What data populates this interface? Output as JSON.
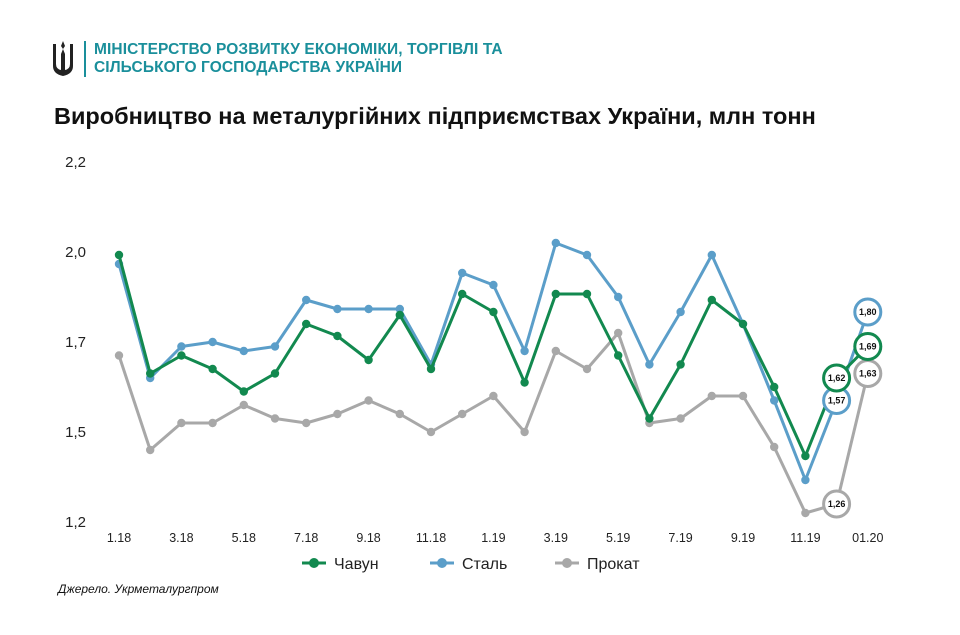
{
  "header": {
    "ministry_line1": "МІНІСТЕРСТВО РОЗВИТКУ ЕКОНОМІКИ, ТОРГІВЛІ ТА",
    "ministry_line2": "СІЛЬСЬКОГО ГОСПОДАРСТВА УКРАЇНИ"
  },
  "source": "Джерело. Укрметалургпром",
  "colors": {
    "accent": "#1a8f9b",
    "chavun": "#12894f",
    "stal": "#5b9ec9",
    "prokat": "#a8a8a8"
  },
  "chart_data": {
    "type": "line",
    "title": "Виробництво на металургійних підприємствах України, млн тонн",
    "xlabel": "",
    "ylabel": "",
    "ylim": [
      1.2,
      2.2
    ],
    "y_ticks": [
      "2,2",
      "2,0",
      "1,7",
      "1,5",
      "1,2"
    ],
    "y_tick_values": [
      2.2,
      2.0,
      1.7,
      1.5,
      1.2
    ],
    "x": [
      "1.18",
      "2.18",
      "3.18",
      "4.18",
      "5.18",
      "6.18",
      "7.18",
      "8.18",
      "9.18",
      "10.18",
      "11.18",
      "12.18",
      "1.19",
      "2.19",
      "3.19",
      "4.19",
      "5.19",
      "6.19",
      "7.19",
      "8.19",
      "9.19",
      "10.19",
      "11.19",
      "12.19",
      "01.20"
    ],
    "x_tick_labels": [
      "1.18",
      "",
      "3.18",
      "",
      "5.18",
      "",
      "7.18",
      "",
      "9.18",
      "",
      "11.18",
      "",
      "1.19",
      "",
      "3.19",
      "",
      "5.19",
      "",
      "7.19",
      "",
      "9.19",
      "",
      "11.19",
      "",
      "01.20"
    ],
    "legend_position": "bottom",
    "grid": false,
    "series": [
      {
        "name": "Чавун",
        "color": "#12894f",
        "values": [
          1.99,
          1.63,
          1.67,
          1.64,
          1.59,
          1.63,
          1.76,
          1.72,
          1.66,
          1.79,
          1.64,
          1.86,
          1.8,
          1.61,
          1.86,
          1.86,
          1.67,
          1.53,
          1.65,
          1.84,
          1.76,
          1.6,
          1.42,
          1.62,
          1.69
        ],
        "labels": {
          "23": "1,62",
          "24": "1,69"
        }
      },
      {
        "name": "Сталь",
        "color": "#5b9ec9",
        "values": [
          1.96,
          1.62,
          1.69,
          1.7,
          1.68,
          1.69,
          1.84,
          1.81,
          1.81,
          1.81,
          1.65,
          1.93,
          1.89,
          1.68,
          2.02,
          1.99,
          1.85,
          1.65,
          1.8,
          1.99,
          1.76,
          1.57,
          1.34,
          1.57,
          1.8
        ],
        "labels": {
          "23": "1,57",
          "24": "1,80"
        }
      },
      {
        "name": "Прокат",
        "color": "#a8a8a8",
        "values": [
          1.67,
          1.44,
          1.52,
          1.52,
          1.56,
          1.53,
          1.52,
          1.54,
          1.57,
          1.54,
          1.5,
          1.54,
          1.58,
          1.5,
          1.68,
          1.64,
          1.73,
          1.52,
          1.53,
          1.58,
          1.58,
          1.45,
          1.23,
          1.26,
          1.63
        ],
        "labels": {
          "23": "1,26",
          "24": "1,63"
        }
      }
    ]
  }
}
